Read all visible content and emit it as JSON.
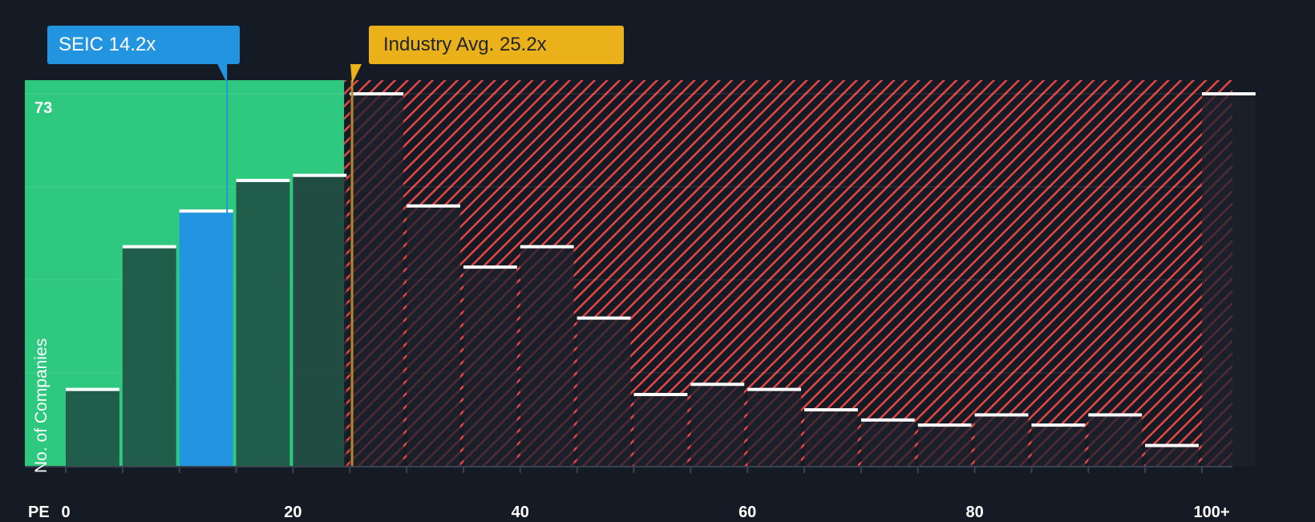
{
  "chart_data": {
    "type": "bar",
    "title": "",
    "xlabel": "PE",
    "ylabel": "No. of Companies",
    "categories": [
      "0-5",
      "5-10",
      "10-15",
      "15-20",
      "20-25",
      "25-30",
      "30-35",
      "35-40",
      "40-45",
      "45-50",
      "50-55",
      "55-60",
      "60-65",
      "65-70",
      "70-75",
      "75-80",
      "80-85",
      "85-90",
      "90-95",
      "95-100",
      "100+"
    ],
    "values": [
      15,
      43,
      50,
      56,
      57,
      73,
      51,
      39,
      43,
      29,
      14,
      16,
      15,
      11,
      9,
      8,
      10,
      8,
      10,
      4,
      73
    ],
    "ylim": [
      0,
      73
    ],
    "y_max_label": "73",
    "x_tick_labels": [
      "0",
      "20",
      "40",
      "60",
      "80",
      "100+"
    ],
    "x_tick_values": [
      0,
      20,
      40,
      60,
      80,
      100
    ],
    "grid": true,
    "highlighted_bin": "10-15",
    "annotations": [
      {
        "label": "SEIC 14.2x",
        "x": 14.2,
        "color": "#2394df"
      },
      {
        "label": "Industry Avg. 25.2x",
        "x": 25.2,
        "color": "#eab11b"
      }
    ],
    "regions": [
      {
        "name": "below-average",
        "from": 0,
        "to": 24.5,
        "color": "#2ec97f"
      },
      {
        "name": "above-average",
        "from": 24.5,
        "to": 102,
        "color": "#e84545",
        "pattern": "hatch"
      }
    ]
  },
  "labels": {
    "company_callout": "SEIC 14.2x",
    "industry_callout": "Industry Avg. 25.2x",
    "y_axis": "No. of Companies",
    "y_max": "73",
    "x_axis": "PE"
  },
  "colors": {
    "background": "#151b24",
    "green_zone": "#2ec97f",
    "bar_dark": "#215d4b",
    "bar_highlight": "#2394df",
    "hatch_red": "#e84545",
    "industry_line": "#b8862a",
    "bar_cap": "#ffffff"
  }
}
